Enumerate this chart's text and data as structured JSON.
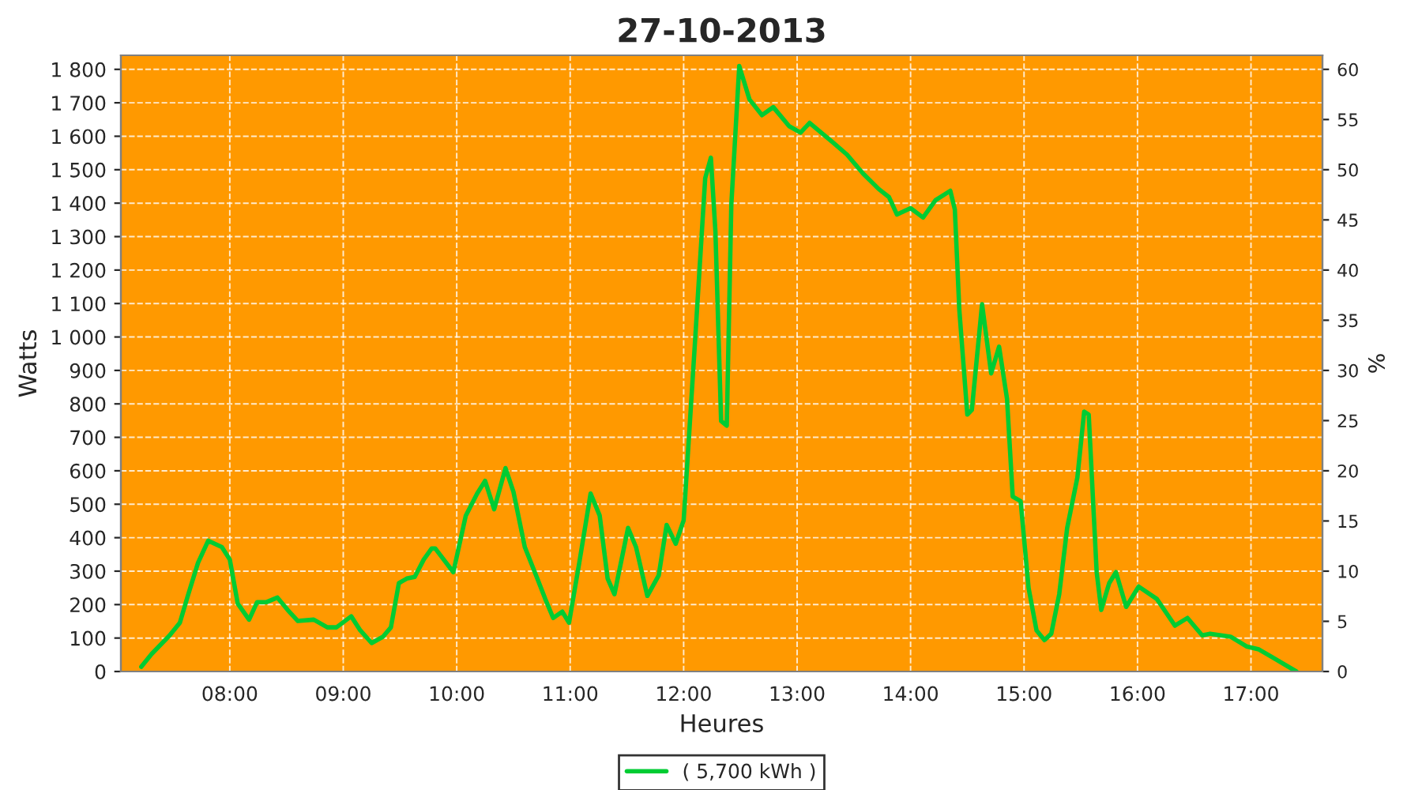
{
  "chart_data": {
    "type": "line",
    "title": "27-10-2013",
    "xlabel": "Heures",
    "ylabel": "Watts",
    "y2label": "%",
    "x": [
      7.22,
      7.31,
      7.47,
      7.56,
      7.63,
      7.72,
      7.81,
      7.93,
      8.0,
      8.07,
      8.17,
      8.24,
      8.32,
      8.42,
      8.51,
      8.6,
      8.74,
      8.86,
      8.94,
      9.07,
      9.15,
      9.25,
      9.35,
      9.42,
      9.49,
      9.56,
      9.63,
      9.71,
      9.78,
      9.81,
      9.97,
      10.08,
      10.18,
      10.25,
      10.33,
      10.43,
      10.5,
      10.6,
      10.71,
      10.78,
      10.85,
      10.93,
      10.99,
      11.08,
      11.18,
      11.26,
      11.33,
      11.39,
      11.51,
      11.58,
      11.68,
      11.78,
      11.85,
      11.93,
      12.0,
      12.1,
      12.19,
      12.24,
      12.28,
      12.33,
      12.38,
      12.42,
      12.49,
      12.58,
      12.69,
      12.79,
      12.93,
      13.03,
      13.11,
      13.31,
      13.44,
      13.58,
      13.72,
      13.81,
      13.88,
      14.0,
      14.11,
      14.22,
      14.35,
      14.39,
      14.43,
      14.5,
      14.54,
      14.63,
      14.71,
      14.78,
      14.85,
      14.9,
      14.97,
      15.04,
      15.11,
      15.18,
      15.24,
      15.31,
      15.38,
      15.47,
      15.53,
      15.57,
      15.64,
      15.68,
      15.75,
      15.81,
      15.9,
      16.01,
      16.17,
      16.33,
      16.44,
      16.57,
      16.64,
      16.82,
      16.96,
      17.07,
      17.19,
      17.4
    ],
    "series": [
      {
        "name": "( 5,700 kWh )",
        "color": "#00cc33",
        "values": [
          14,
          52,
          108,
          146,
          226,
          325,
          391,
          372,
          335,
          203,
          155,
          207,
          207,
          221,
          184,
          151,
          155,
          132,
          132,
          165,
          123,
          85,
          104,
          132,
          264,
          278,
          283,
          335,
          368,
          368,
          297,
          466,
          532,
          570,
          485,
          608,
          537,
          372,
          278,
          217,
          160,
          179,
          146,
          325,
          532,
          466,
          278,
          231,
          429,
          372,
          226,
          287,
          438,
          382,
          452,
          985,
          1475,
          1536,
          1315,
          749,
          735,
          1395,
          1810,
          1710,
          1663,
          1687,
          1630,
          1611,
          1640,
          1583,
          1545,
          1489,
          1442,
          1418,
          1366,
          1385,
          1357,
          1409,
          1437,
          1381,
          1079,
          768,
          782,
          1098,
          891,
          971,
          815,
          523,
          509,
          250,
          123,
          94,
          113,
          231,
          429,
          580,
          777,
          768,
          297,
          184,
          264,
          297,
          193,
          254,
          217,
          137,
          160,
          108,
          113,
          104,
          75,
          66,
          42,
          0
        ]
      }
    ],
    "xlim": [
      7.04,
      17.63
    ],
    "xticks": [
      {
        "value": 8,
        "label": "08:00"
      },
      {
        "value": 9,
        "label": "09:00"
      },
      {
        "value": 10,
        "label": "10:00"
      },
      {
        "value": 11,
        "label": "11:00"
      },
      {
        "value": 12,
        "label": "12:00"
      },
      {
        "value": 13,
        "label": "13:00"
      },
      {
        "value": 14,
        "label": "14:00"
      },
      {
        "value": 15,
        "label": "15:00"
      },
      {
        "value": 16,
        "label": "16:00"
      },
      {
        "value": 17,
        "label": "17:00"
      }
    ],
    "ylim": [
      0,
      1842
    ],
    "yticks": [
      0,
      100,
      200,
      300,
      400,
      500,
      600,
      700,
      800,
      900,
      {
        "value": 1000,
        "label": "1 000"
      },
      {
        "value": 1100,
        "label": "1 100"
      },
      {
        "value": 1200,
        "label": "1 200"
      },
      {
        "value": 1300,
        "label": "1 300"
      },
      {
        "value": 1400,
        "label": "1 400"
      },
      {
        "value": 1500,
        "label": "1 500"
      },
      {
        "value": 1600,
        "label": "1 600"
      },
      {
        "value": 1700,
        "label": "1 700"
      },
      {
        "value": 1800,
        "label": "1 800"
      }
    ],
    "y2lim": [
      0,
      61.4
    ],
    "y2ticks": [
      0,
      5,
      10,
      15,
      20,
      25,
      30,
      35,
      40,
      45,
      50,
      55,
      60
    ],
    "grid": true,
    "legend": "bottom",
    "marker": "none",
    "line_style": "solid"
  }
}
